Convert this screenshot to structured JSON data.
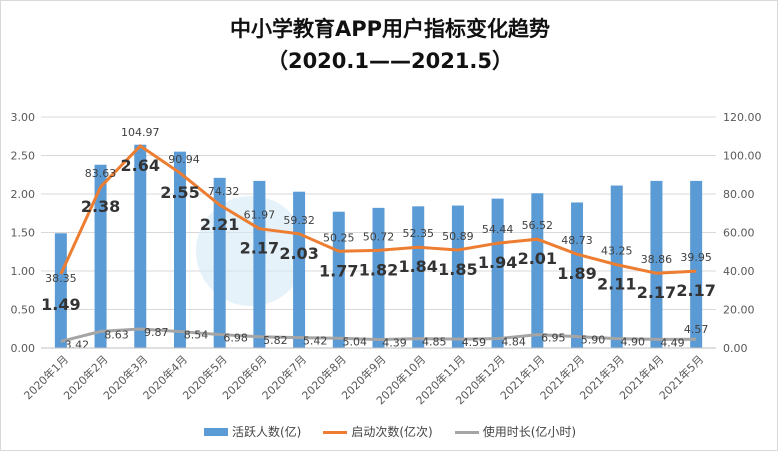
{
  "chart_data": {
    "type": "bar+line",
    "title": "中小学教育APP用户指标变化趋势",
    "subtitle": "（2020.1——2021.5）",
    "categories": [
      "2020年1月",
      "2020年2月",
      "2020年3月",
      "2020年4月",
      "2020年5月",
      "2020年6月",
      "2020年7月",
      "2020年8月",
      "2020年9月",
      "2020年10月",
      "2020年11月",
      "2020年12月",
      "2021年1月",
      "2021年2月",
      "2021年3月",
      "2021年4月",
      "2021年5月"
    ],
    "series": [
      {
        "name": "活跃人数(亿)",
        "type": "bar",
        "axis": "left",
        "color": "#5b9bd5",
        "values": [
          1.49,
          2.38,
          2.64,
          2.55,
          2.21,
          2.17,
          2.03,
          1.77,
          1.82,
          1.84,
          1.85,
          1.94,
          2.01,
          1.89,
          2.11,
          2.17,
          2.17
        ]
      },
      {
        "name": "启动次数(亿次)",
        "type": "line",
        "axis": "right",
        "color": "#ed7d31",
        "values": [
          38.35,
          83.63,
          104.97,
          90.94,
          74.32,
          61.97,
          59.32,
          50.25,
          50.72,
          52.35,
          50.89,
          54.44,
          56.52,
          48.73,
          43.25,
          38.86,
          39.95
        ]
      },
      {
        "name": "使用时长(亿小时)",
        "type": "line",
        "axis": "right",
        "color": "#a5a5a5",
        "values": [
          3.42,
          8.63,
          9.87,
          8.54,
          6.98,
          5.82,
          5.42,
          5.04,
          4.39,
          4.85,
          4.59,
          4.84,
          6.95,
          5.9,
          4.9,
          4.49,
          4.57
        ]
      }
    ],
    "left_axis": {
      "range": [
        0,
        3
      ],
      "ticks": [
        "0.00",
        "0.50",
        "1.00",
        "1.50",
        "2.00",
        "2.50",
        "3.00"
      ]
    },
    "right_axis": {
      "range": [
        0,
        120
      ],
      "ticks": [
        "0.00",
        "20.00",
        "40.00",
        "60.00",
        "80.00",
        "100.00",
        "120.00"
      ]
    },
    "grid": true,
    "legend": "bottom"
  }
}
